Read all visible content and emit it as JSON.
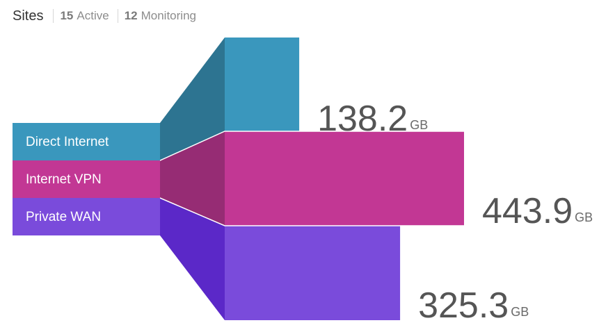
{
  "header": {
    "title": "Sites",
    "active_count": "15",
    "active_label": "Active",
    "monitoring_count": "12",
    "monitoring_label": "Monitoring"
  },
  "chart_data": {
    "type": "bar",
    "unit": "GB",
    "categories": [
      "Direct Internet",
      "Internet VPN",
      "Private WAN"
    ],
    "values": [
      138.2,
      443.9,
      325.3
    ],
    "value_labels": [
      "138.2",
      "443.9",
      "325.3"
    ],
    "colors": {
      "bar": [
        "#3a97bd",
        "#c23794",
        "#7a4bdb"
      ],
      "chip": [
        "#3a97bd",
        "#c23794",
        "#7a4bdb"
      ],
      "connector": [
        "#2d7491",
        "#962c74",
        "#5b28c8"
      ]
    }
  }
}
